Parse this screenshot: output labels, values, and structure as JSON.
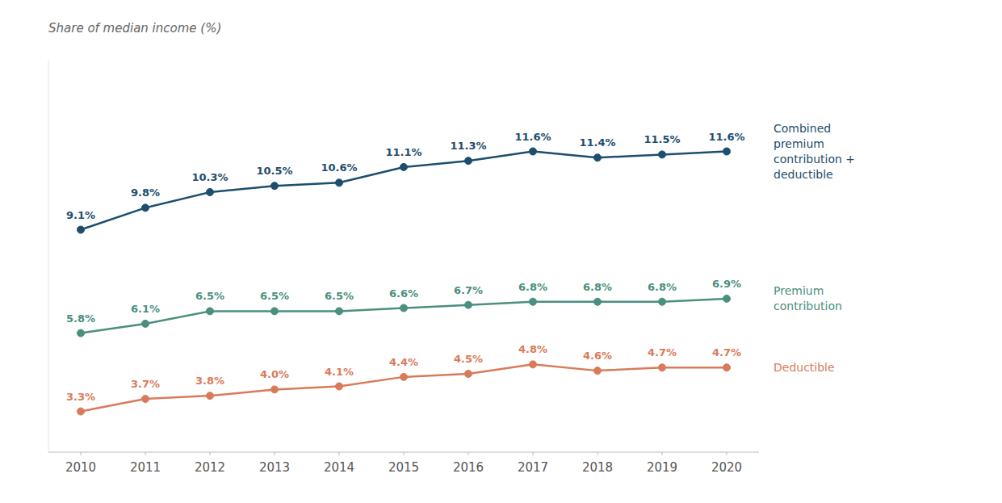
{
  "chart_data": {
    "type": "line",
    "ylabel": "Share of median income (%)",
    "x": [
      2010,
      2011,
      2012,
      2013,
      2014,
      2015,
      2016,
      2017,
      2018,
      2019,
      2020
    ],
    "xlim": [
      2009.5,
      2020.5
    ],
    "xticks": [
      2010,
      2011,
      2012,
      2013,
      2014,
      2015,
      2016,
      2017,
      2018,
      2019,
      2020
    ],
    "ylim": [
      2.0,
      14.5
    ],
    "tick_labels": "x",
    "grid": false,
    "data_labels": true,
    "marker": "circle",
    "series": [
      {
        "name": "Combined\npremium\ncontribution +\ndeductible",
        "color": "#1d4e6e",
        "values": [
          9.1,
          9.8,
          10.3,
          10.5,
          10.6,
          11.1,
          11.3,
          11.6,
          11.4,
          11.5,
          11.6
        ],
        "value_labels": [
          "9.1%",
          "9.8%",
          "10.3%",
          "10.5%",
          "10.6%",
          "11.1%",
          "11.3%",
          "11.6%",
          "11.4%",
          "11.5%",
          "11.6%"
        ]
      },
      {
        "name": "Premium\ncontribution",
        "color": "#4a8f7f",
        "values": [
          5.8,
          6.1,
          6.5,
          6.5,
          6.5,
          6.6,
          6.7,
          6.8,
          6.8,
          6.8,
          6.9
        ],
        "value_labels": [
          "5.8%",
          "6.1%",
          "6.5%",
          "6.5%",
          "6.5%",
          "6.6%",
          "6.7%",
          "6.8%",
          "6.8%",
          "6.8%",
          "6.9%"
        ]
      },
      {
        "name": "Deductible",
        "color": "#d97b5a",
        "values": [
          3.3,
          3.7,
          3.8,
          4.0,
          4.1,
          4.4,
          4.5,
          4.8,
          4.6,
          4.7,
          4.7
        ],
        "value_labels": [
          "3.3%",
          "3.7%",
          "3.8%",
          "4.0%",
          "4.1%",
          "4.4%",
          "4.5%",
          "4.8%",
          "4.6%",
          "4.7%",
          "4.7%"
        ]
      }
    ]
  }
}
